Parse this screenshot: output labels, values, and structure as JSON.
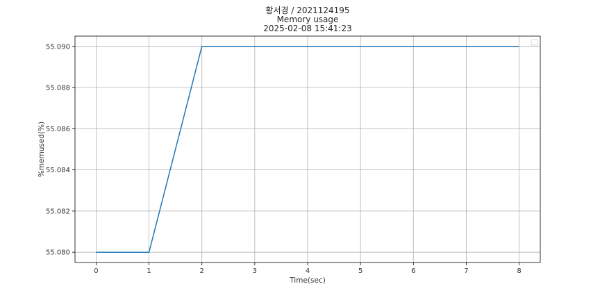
{
  "chart_data": {
    "type": "line",
    "title": [
      "황서경 / 2021124195",
      "Memory usage",
      "2025-02-08 15:41:23"
    ],
    "xlabel": "Time(sec)",
    "ylabel": "%memused(%)",
    "x": [
      0,
      1,
      2,
      3,
      4,
      5,
      6,
      7,
      8
    ],
    "series": [
      {
        "values": [
          55.08,
          55.08,
          55.09,
          55.09,
          55.09,
          55.09,
          55.09,
          55.09,
          55.09
        ]
      }
    ],
    "xticks": [
      "0",
      "1",
      "2",
      "3",
      "4",
      "5",
      "6",
      "7",
      "8"
    ],
    "yticks": [
      "55.080",
      "55.082",
      "55.084",
      "55.086",
      "55.088",
      "55.090"
    ],
    "xlim": [
      -0.4,
      8.4
    ],
    "ylim": [
      55.0795,
      55.0905
    ],
    "grid": true,
    "legend": "top-right",
    "colors": {
      "line": "#1f77b4",
      "grid": "#b0b0b0"
    }
  }
}
